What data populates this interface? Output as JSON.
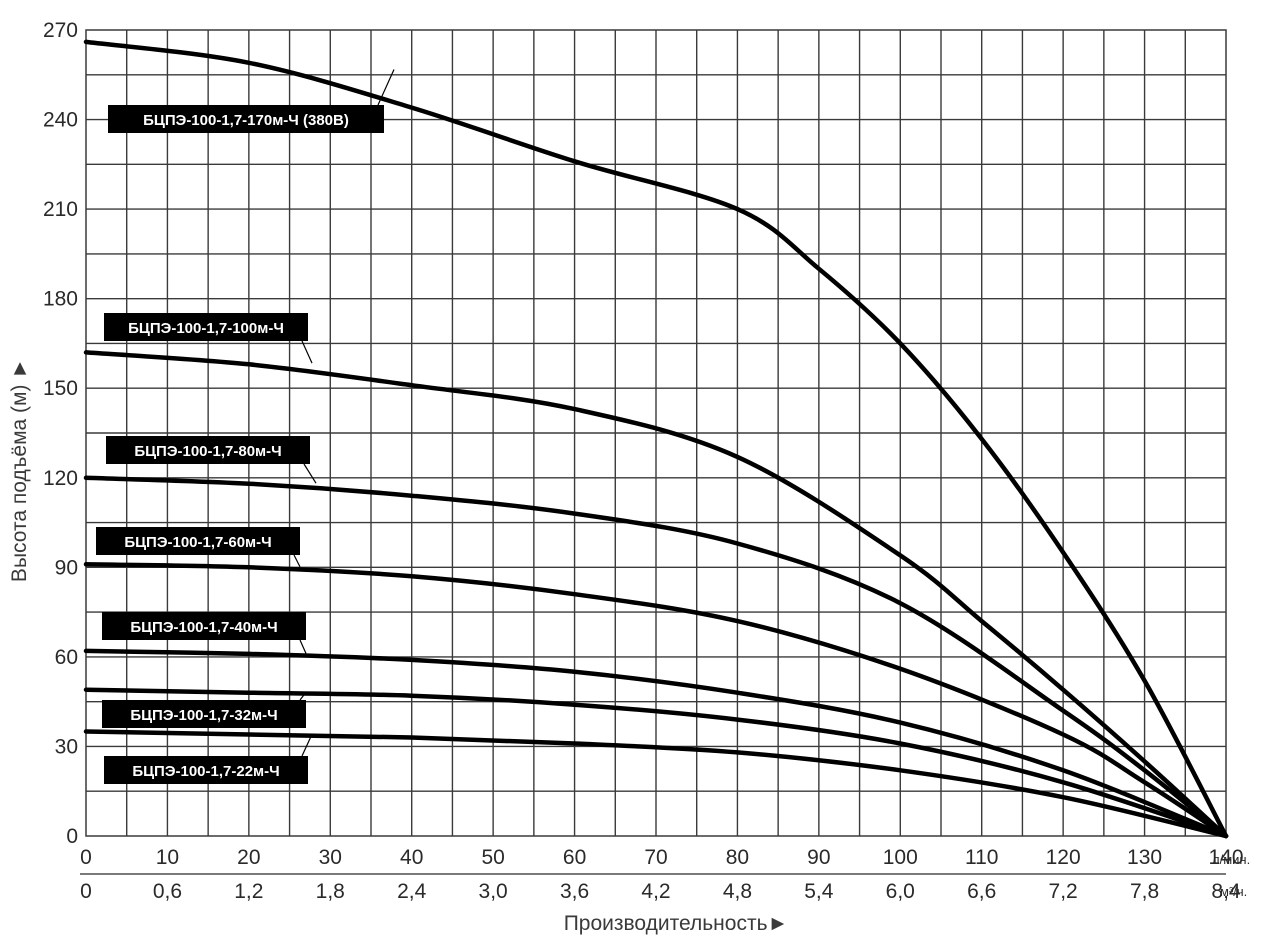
{
  "chart_data": {
    "type": "line",
    "title": "",
    "xlabel": "Производительность",
    "ylabel": "Высота подъёма (м)",
    "x_unit_primary": "л/мин.",
    "x_unit_secondary": "м³/ч.",
    "xlim": [
      0,
      140
    ],
    "ylim": [
      0,
      270
    ],
    "grid": true,
    "x_ticks_primary": [
      "0",
      "10",
      "20",
      "30",
      "40",
      "50",
      "60",
      "70",
      "80",
      "90",
      "100",
      "110",
      "120",
      "130",
      "140"
    ],
    "x_ticks_secondary": [
      "0",
      "0,6",
      "1,2",
      "1,8",
      "2,4",
      "3,0",
      "3,6",
      "4,2",
      "4,8",
      "5,4",
      "6,0",
      "6,6",
      "7,2",
      "7,8",
      "8,4"
    ],
    "y_ticks": [
      "0",
      "30",
      "60",
      "90",
      "120",
      "150",
      "180",
      "210",
      "240",
      "270"
    ],
    "colors": {
      "curve": "#000000",
      "grid": "#3a3a3a",
      "label_bg": "#000000",
      "label_text": "#ffffff"
    },
    "series": [
      {
        "name": "БЦПЭ-100-1,7-170м-Ч (380В)",
        "x": [
          0,
          20,
          40,
          60,
          80,
          90,
          100,
          110,
          120,
          130,
          140
        ],
        "y": [
          266,
          259,
          244,
          226,
          210,
          190,
          165,
          133,
          95,
          52,
          0
        ]
      },
      {
        "name": "БЦПЭ-100-1,7-100м-Ч",
        "x": [
          0,
          20,
          40,
          60,
          80,
          100,
          110,
          120,
          130,
          140
        ],
        "y": [
          162,
          158,
          151,
          143,
          127,
          94,
          72,
          49,
          25,
          0
        ]
      },
      {
        "name": "БЦПЭ-100-1,7-80м-Ч",
        "x": [
          0,
          20,
          40,
          60,
          80,
          100,
          120,
          130,
          140
        ],
        "y": [
          120,
          118,
          114,
          108,
          98,
          78,
          42,
          22,
          0
        ]
      },
      {
        "name": "БЦПЭ-100-1,7-60м-Ч",
        "x": [
          0,
          20,
          40,
          60,
          80,
          100,
          120,
          130,
          140
        ],
        "y": [
          91,
          90,
          87,
          81,
          72,
          56,
          34,
          18,
          0
        ]
      },
      {
        "name": "БЦПЭ-100-1,7-40м-Ч",
        "x": [
          0,
          20,
          40,
          60,
          80,
          100,
          120,
          140
        ],
        "y": [
          62,
          61,
          59,
          55,
          48,
          38,
          22,
          0
        ]
      },
      {
        "name": "БЦПЭ-100-1,7-32м-Ч",
        "x": [
          0,
          20,
          40,
          60,
          80,
          100,
          120,
          140
        ],
        "y": [
          49,
          48,
          47,
          44,
          39,
          31,
          18,
          0
        ]
      },
      {
        "name": "БЦПЭ-100-1,7-22м-Ч",
        "x": [
          0,
          20,
          40,
          60,
          80,
          100,
          120,
          140
        ],
        "y": [
          35,
          34,
          33,
          31,
          28,
          22,
          13,
          0
        ]
      }
    ]
  }
}
